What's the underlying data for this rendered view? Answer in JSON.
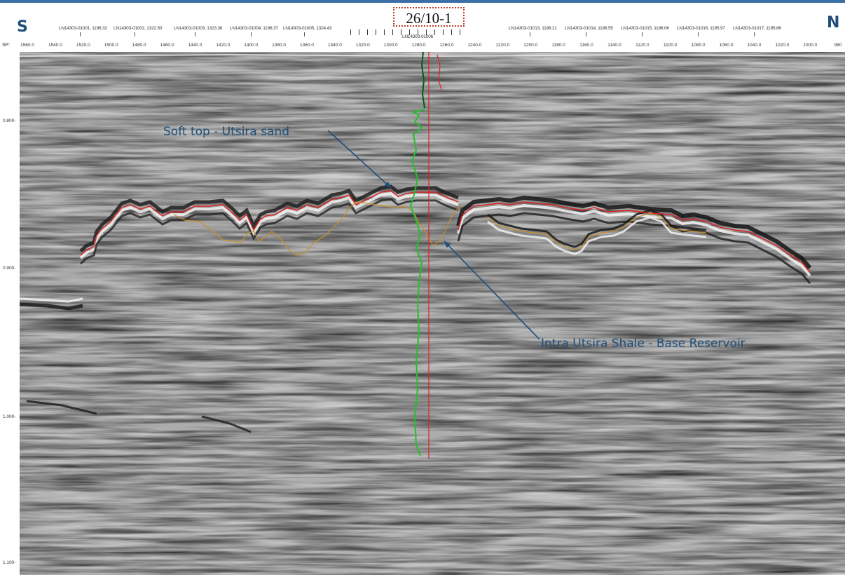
{
  "section": {
    "direction_left": "S",
    "direction_right": "N",
    "well_name": "26/10-1",
    "well_trace_label": "LN14303-01006",
    "sp_axis_label": "SP:"
  },
  "line_labels": [
    "LN14303-01001, 1196.32",
    "LN14303-01002, 1322.50",
    "LN14303-01003, 1323.36",
    "LN14303-01004, 1196.37",
    "LN14303-01005, 1324.43",
    "LN14303-01013, 1196.21",
    "LN14303-01014, 1196.55",
    "LN14303-01015, 1196.06",
    "LN14303-01016, 1195.97",
    "LN14303-01017, 1195.86"
  ],
  "sp_ticks": [
    "1560.0",
    "1540.0",
    "1520.0",
    "1500.0",
    "1480.0",
    "1460.0",
    "1440.0",
    "1420.0",
    "1400.0",
    "1380.0",
    "1360.0",
    "1340.0",
    "1320.0",
    "1300.0",
    "1280.0",
    "1260.0",
    "1240.0",
    "1220.0",
    "1200.0",
    "1180.0",
    "1160.0",
    "1140.0",
    "1120.0",
    "1100.0",
    "1080.0",
    "1060.0",
    "1040.0",
    "1020.0",
    "1000.0",
    "980"
  ],
  "time_ticks": [
    "0.800",
    "0.900",
    "1.000",
    "1.100"
  ],
  "annotations": {
    "top_horizon": "Soft top - Utsira sand",
    "base_horizon": "Intra Utsira Shale - Base Reservoir"
  },
  "colors": {
    "top_horizon": "#e02020",
    "base_horizon": "#c8902a",
    "well_log": "#22c02a",
    "well_log_dark": "#0a5a12",
    "well_path": "#e02020",
    "annotation_text": "#1f4e79",
    "arrow": "#1f4e79"
  }
}
